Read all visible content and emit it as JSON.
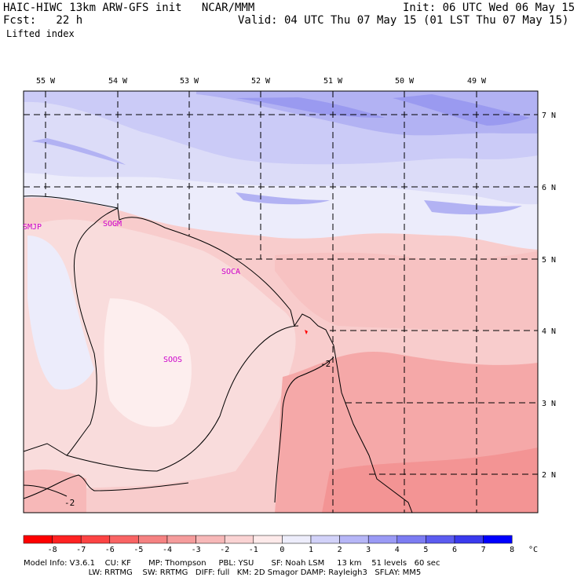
{
  "header": {
    "model_line": "HAIC-HIWC 13km ARW-GFS init   NCAR/MMM",
    "init_line": "Init: 06 UTC Wed 06 May 15",
    "fcst_line": "Fcst:   22 h",
    "valid_line": "Valid: 04 UTC Thu 07 May 15 (01 LST Thu 07 May 15)",
    "field": "Lifted index"
  },
  "map": {
    "longitude_labels": [
      "55 W",
      "54 W",
      "53 W",
      "52 W",
      "51 W",
      "50 W",
      "49 W"
    ],
    "latitude_labels": [
      "7 N",
      "6 N",
      "5 N",
      "4 N",
      "3 N",
      "2 N"
    ],
    "stations": [
      {
        "id": "SMJP"
      },
      {
        "id": "SOGM"
      },
      {
        "id": "SOCA"
      },
      {
        "id": "SOOS"
      }
    ],
    "contour_labels": [
      "-2",
      "-2"
    ],
    "station_color": "#cc00cc"
  },
  "colorbar": {
    "tick_labels": [
      "-8",
      "-7",
      "-6",
      "-5",
      "-4",
      "-3",
      "-2",
      "-1",
      "0",
      "1",
      "2",
      "3",
      "4",
      "5",
      "6",
      "7",
      "8"
    ],
    "unit": "°C",
    "colors": [
      "#ff0000",
      "#ff2222",
      "#fc4444",
      "#f96464",
      "#f58282",
      "#f59c9c",
      "#f7b8b8",
      "#fad3d3",
      "#fdeaea",
      "#ededfb",
      "#d2d2f9",
      "#b6b6f7",
      "#9a9af5",
      "#7c7cf2",
      "#5c5cf0",
      "#3a3aee",
      "#0000ff"
    ]
  },
  "footer": {
    "line1": "Model Info: V3.6.1    CU: KF       MP: Thompson     PBL: YSU       SF: Noah LSM     13 km    51 levels   60 sec",
    "line2": "                          LW: RRTMG    SW: RRTMG   DIFF: full   KM: 2D Smagor DAMP: Rayleigh3   SFLAY: MM5"
  }
}
